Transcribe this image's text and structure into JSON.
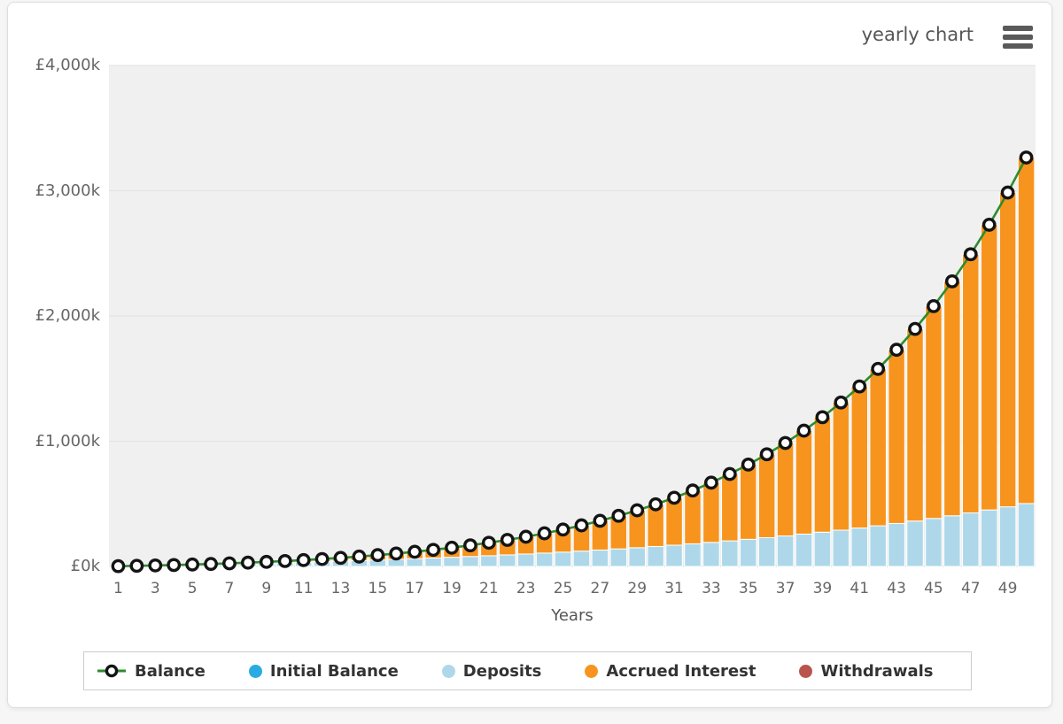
{
  "header": {
    "title": "yearly chart"
  },
  "chart_data": {
    "type": "line+stacked-bar",
    "title": "yearly chart",
    "xlabel": "Years",
    "ylabel": "",
    "unit": "thousands of pounds (k)",
    "ylim": [
      0,
      4000
    ],
    "grid": true,
    "legend_position": "bottom",
    "x": [
      1,
      2,
      3,
      4,
      5,
      6,
      7,
      8,
      9,
      10,
      11,
      12,
      13,
      14,
      15,
      16,
      17,
      18,
      19,
      20,
      21,
      22,
      23,
      24,
      25,
      26,
      27,
      28,
      29,
      30,
      31,
      32,
      33,
      34,
      35,
      36,
      37,
      38,
      39,
      40,
      41,
      42,
      43,
      44,
      45,
      46,
      47,
      48,
      49,
      50
    ],
    "x_tick_values": [
      1,
      3,
      5,
      7,
      9,
      11,
      13,
      15,
      17,
      19,
      21,
      23,
      25,
      27,
      29,
      31,
      33,
      35,
      37,
      39,
      41,
      43,
      45,
      47,
      49
    ],
    "y_ticks": [
      {
        "value": 0,
        "label": "£0k"
      },
      {
        "value": 1000,
        "label": "£1,000k"
      },
      {
        "value": 2000,
        "label": "£2,000k"
      },
      {
        "value": 3000,
        "label": "£3,000k"
      },
      {
        "value": 4000,
        "label": "£4,000k"
      }
    ],
    "bar_series": [
      {
        "name": "Initial Balance",
        "color": "#29abe2",
        "values": [
          0,
          0,
          0,
          0,
          0,
          0,
          0,
          0,
          0,
          0,
          0,
          0,
          0,
          0,
          0,
          0,
          0,
          0,
          0,
          0,
          0,
          0,
          0,
          0,
          0,
          0,
          0,
          0,
          0,
          0,
          0,
          0,
          0,
          0,
          0,
          0,
          0,
          0,
          0,
          0,
          0,
          0,
          0,
          0,
          0,
          0,
          0,
          0,
          0,
          0
        ]
      },
      {
        "name": "Deposits",
        "color": "#aed8ea",
        "values": [
          2.4,
          4.9,
          7.6,
          10.3,
          13.3,
          16.3,
          19.5,
          22.9,
          26.5,
          30.2,
          34.1,
          38.2,
          42.5,
          47.0,
          51.8,
          56.8,
          62.0,
          67.5,
          73.3,
          79.4,
          85.7,
          92.4,
          99.4,
          106.8,
          114.5,
          122.7,
          131.2,
          140.2,
          149.6,
          159.5,
          169.8,
          180.7,
          192.2,
          204.2,
          216.8,
          230.0,
          243.9,
          258.5,
          273.8,
          289.9,
          306.8,
          324.6,
          343.2,
          362.7,
          383.3,
          404.8,
          427.5,
          451.3,
          476.2,
          502.4
        ]
      },
      {
        "name": "Accrued Interest",
        "color": "#f7941e",
        "values": [
          0.0,
          0.2,
          0.6,
          1.3,
          2.3,
          3.7,
          5.4,
          7.5,
          10.1,
          13.2,
          16.8,
          21.2,
          26.2,
          32.1,
          38.8,
          46.5,
          55.3,
          65.2,
          76.5,
          89.2,
          103.6,
          119.7,
          137.7,
          157.8,
          180.3,
          205.4,
          233.3,
          264.3,
          298.6,
          336.7,
          378.9,
          425.6,
          477.1,
          534.0,
          596.7,
          665.9,
          742.0,
          825.8,
          918.0,
          1019.3,
          1130.6,
          1252.8,
          1386.8,
          1533.9,
          1695.1,
          1871.8,
          2065.3,
          2277.2,
          2509.1,
          2762.8
        ]
      },
      {
        "name": "Withdrawals",
        "color": "#b9544c",
        "values": [
          0,
          0,
          0,
          0,
          0,
          0,
          0,
          0,
          0,
          0,
          0,
          0,
          0,
          0,
          0,
          0,
          0,
          0,
          0,
          0,
          0,
          0,
          0,
          0,
          0,
          0,
          0,
          0,
          0,
          0,
          0,
          0,
          0,
          0,
          0,
          0,
          0,
          0,
          0,
          0,
          0,
          0,
          0,
          0,
          0,
          0,
          0,
          0,
          0,
          0
        ]
      }
    ],
    "line_series": {
      "name": "Balance",
      "line_color": "#2e8b2e",
      "marker": "open-circle",
      "marker_fill": "#ffffff",
      "marker_stroke": "#141414",
      "values": [
        2.4,
        5.1,
        8.2,
        11.6,
        15.6,
        20.0,
        24.9,
        30.4,
        36.6,
        43.4,
        50.9,
        59.4,
        68.7,
        79.1,
        90.6,
        103.3,
        117.3,
        132.7,
        149.8,
        168.6,
        189.3,
        212.1,
        237.1,
        264.6,
        294.8,
        328.1,
        364.5,
        404.5,
        448.2,
        496.2,
        548.7,
        606.3,
        669.3,
        738.2,
        813.5,
        895.9,
        985.9,
        1084.3,
        1191.8,
        1309.2,
        1437.4,
        1577.4,
        1730.0,
        1896.6,
        2078.4,
        2276.6,
        2492.8,
        2728.5,
        2985.3,
        3265.2
      ]
    },
    "legend": [
      {
        "label": "Balance",
        "swatch": "open-circle-line",
        "color": "#141414",
        "line_color": "#2e8b2e"
      },
      {
        "label": "Initial Balance",
        "swatch": "circle",
        "color": "#29abe2"
      },
      {
        "label": "Deposits",
        "swatch": "circle",
        "color": "#aed8ea"
      },
      {
        "label": "Accrued Interest",
        "swatch": "circle",
        "color": "#f7941e"
      },
      {
        "label": "Withdrawals",
        "swatch": "circle",
        "color": "#b9544c"
      }
    ],
    "plot_bg_color": "#f0f0f0",
    "gridline_color": "#e2e2e2"
  }
}
